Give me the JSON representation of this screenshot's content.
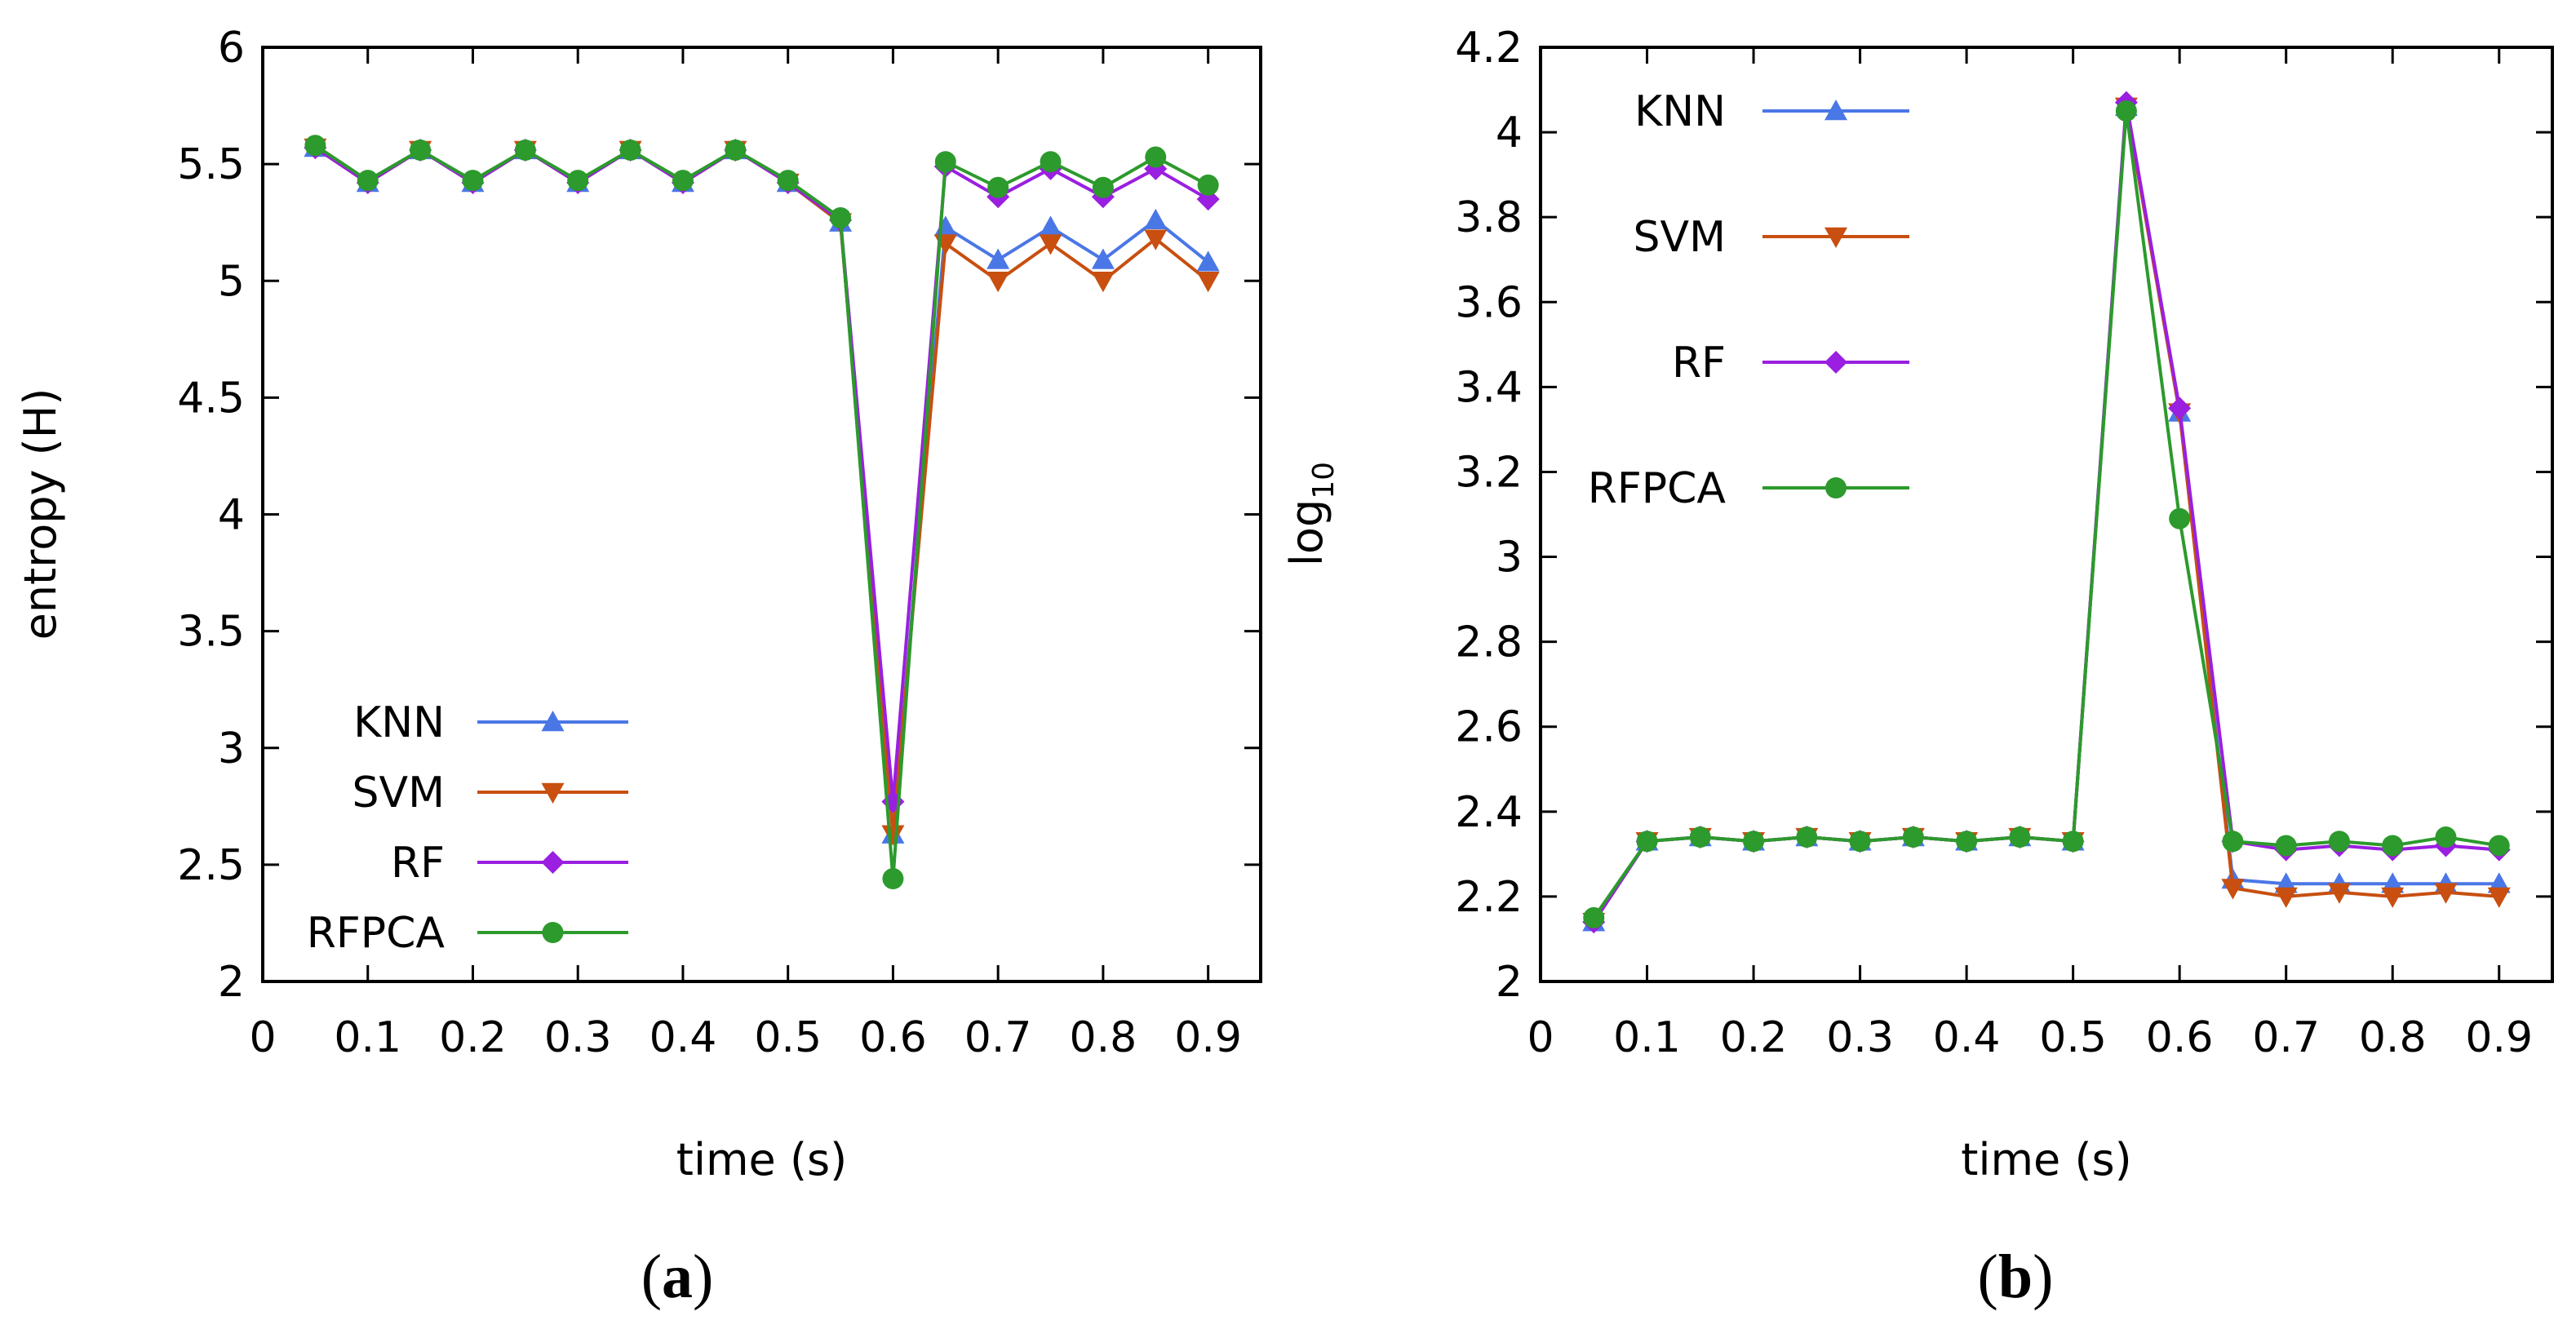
{
  "captions": {
    "a_open": "(",
    "a_letter": "a",
    "a_close": ")",
    "b_open": "(",
    "b_letter": "b",
    "b_close": ")"
  },
  "colors": {
    "KNN": "#4a77e6",
    "SVM": "#c84f10",
    "RF": "#9a1fe0",
    "RFPCA": "#2c9a2c",
    "frame": "#000000"
  },
  "chart_data": [
    {
      "type": "line",
      "panel": "a",
      "title": "",
      "xlabel": "time (s)",
      "ylabel": "entropy (H)",
      "xlim": [
        0,
        0.95
      ],
      "ylim": [
        2,
        6
      ],
      "xticks": [
        0,
        0.1,
        0.2,
        0.3,
        0.4,
        0.5,
        0.6,
        0.7,
        0.8,
        0.9
      ],
      "xtick_labels": [
        "0",
        "0.1",
        "0.2",
        "0.3",
        "0.4",
        "0.5",
        "0.6",
        "0.7",
        "0.8",
        "0.9"
      ],
      "yticks": [
        2,
        2.5,
        3,
        3.5,
        4,
        4.5,
        5,
        5.5,
        6
      ],
      "ytick_labels": [
        "2",
        "2.5",
        "3",
        "3.5",
        "4",
        "4.5",
        "5",
        "5.5",
        "6"
      ],
      "legend_position": "bottom-left",
      "x": [
        0.05,
        0.1,
        0.15,
        0.2,
        0.25,
        0.3,
        0.35,
        0.4,
        0.45,
        0.5,
        0.55,
        0.6,
        0.65,
        0.7,
        0.75,
        0.8,
        0.85,
        0.9
      ],
      "series": [
        {
          "name": "KNN",
          "marker": "triangle-up",
          "values": [
            5.57,
            5.42,
            5.56,
            5.42,
            5.56,
            5.42,
            5.56,
            5.42,
            5.56,
            5.42,
            5.25,
            2.63,
            5.23,
            5.09,
            5.23,
            5.09,
            5.26,
            5.08
          ]
        },
        {
          "name": "SVM",
          "marker": "triangle-down",
          "values": [
            5.57,
            5.42,
            5.56,
            5.42,
            5.56,
            5.42,
            5.56,
            5.42,
            5.56,
            5.42,
            5.25,
            2.63,
            5.16,
            5.0,
            5.16,
            5.0,
            5.18,
            5.0
          ]
        },
        {
          "name": "RF",
          "marker": "diamond",
          "values": [
            5.57,
            5.42,
            5.56,
            5.42,
            5.56,
            5.42,
            5.56,
            5.42,
            5.56,
            5.42,
            5.26,
            2.77,
            5.49,
            5.36,
            5.48,
            5.36,
            5.48,
            5.35
          ]
        },
        {
          "name": "RFPCA",
          "marker": "circle",
          "values": [
            5.58,
            5.43,
            5.56,
            5.43,
            5.56,
            5.43,
            5.56,
            5.43,
            5.56,
            5.43,
            5.27,
            2.44,
            5.51,
            5.4,
            5.51,
            5.4,
            5.53,
            5.41
          ]
        }
      ]
    },
    {
      "type": "line",
      "panel": "b",
      "title": "",
      "xlabel": "time (s)",
      "ylabel_main": "log",
      "ylabel_sub": "10",
      "xlim": [
        0,
        0.95
      ],
      "ylim": [
        2,
        4.2
      ],
      "xticks": [
        0,
        0.1,
        0.2,
        0.3,
        0.4,
        0.5,
        0.6,
        0.7,
        0.8,
        0.9
      ],
      "xtick_labels": [
        "0",
        "0.1",
        "0.2",
        "0.3",
        "0.4",
        "0.5",
        "0.6",
        "0.7",
        "0.8",
        "0.9"
      ],
      "yticks": [
        2,
        2.2,
        2.4,
        2.6,
        2.8,
        3,
        3.2,
        3.4,
        3.6,
        3.8,
        4,
        4.2
      ],
      "ytick_labels": [
        "2",
        "2.2",
        "2.4",
        "2.6",
        "2.8",
        "3",
        "3.2",
        "3.4",
        "3.6",
        "3.8",
        "4",
        "4.2"
      ],
      "legend_position": "top-left",
      "x": [
        0.05,
        0.1,
        0.15,
        0.2,
        0.25,
        0.3,
        0.35,
        0.4,
        0.45,
        0.5,
        0.55,
        0.6,
        0.65,
        0.7,
        0.75,
        0.8,
        0.85,
        0.9
      ],
      "series": [
        {
          "name": "KNN",
          "marker": "triangle-up",
          "values": [
            2.14,
            2.33,
            2.34,
            2.33,
            2.34,
            2.33,
            2.34,
            2.33,
            2.34,
            2.33,
            4.06,
            3.34,
            2.24,
            2.23,
            2.23,
            2.23,
            2.23,
            2.23
          ]
        },
        {
          "name": "SVM",
          "marker": "triangle-down",
          "values": [
            2.14,
            2.33,
            2.34,
            2.33,
            2.34,
            2.33,
            2.34,
            2.33,
            2.34,
            2.33,
            4.06,
            3.34,
            2.22,
            2.2,
            2.21,
            2.2,
            2.21,
            2.2
          ]
        },
        {
          "name": "RF",
          "marker": "diamond",
          "values": [
            2.14,
            2.33,
            2.34,
            2.33,
            2.34,
            2.33,
            2.34,
            2.33,
            2.34,
            2.33,
            4.07,
            3.35,
            2.33,
            2.31,
            2.32,
            2.31,
            2.32,
            2.31
          ]
        },
        {
          "name": "RFPCA",
          "marker": "circle",
          "values": [
            2.15,
            2.33,
            2.34,
            2.33,
            2.34,
            2.33,
            2.34,
            2.33,
            2.34,
            2.33,
            4.05,
            3.09,
            2.33,
            2.32,
            2.33,
            2.32,
            2.34,
            2.32
          ]
        }
      ]
    }
  ]
}
